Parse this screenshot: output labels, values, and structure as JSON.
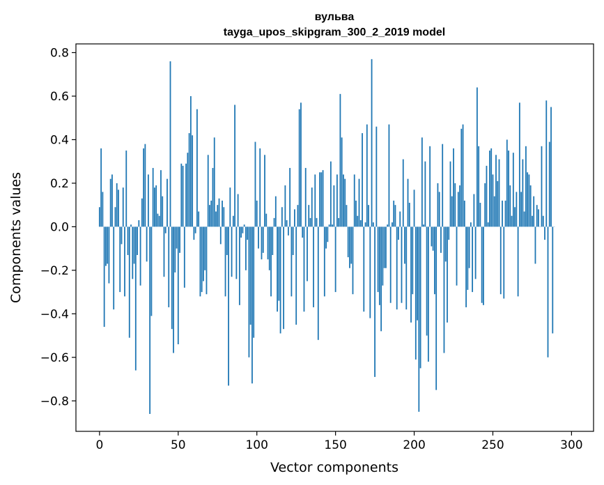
{
  "chart_data": {
    "type": "bar",
    "title": "вульва",
    "subtitle": "tayga_upos_skipgram_300_2_2019 model",
    "xlabel": "Vector components",
    "ylabel": "Components values",
    "xlim": [
      -15,
      314
    ],
    "ylim": [
      -0.94,
      0.84
    ],
    "xticks": [
      0,
      50,
      100,
      150,
      200,
      250,
      300
    ],
    "yticks": [
      -0.8,
      -0.6,
      -0.4,
      -0.2,
      0.0,
      0.2,
      0.4,
      0.6,
      0.8
    ],
    "ytick_labels": [
      "−0.8",
      "−0.6",
      "−0.4",
      "−0.2",
      "0.0",
      "0.2",
      "0.4",
      "0.6",
      "0.8"
    ],
    "xtick_labels": [
      "0",
      "50",
      "100",
      "150",
      "200",
      "250",
      "300"
    ],
    "bar_color": "#1f77b4",
    "grid": false,
    "values": [
      0.09,
      0.36,
      0.16,
      -0.46,
      -0.18,
      -0.17,
      -0.26,
      0.22,
      0.24,
      -0.38,
      0.09,
      0.2,
      0.17,
      -0.3,
      -0.08,
      0.18,
      -0.32,
      0.35,
      -0.13,
      -0.51,
      0.01,
      -0.24,
      -0.17,
      -0.66,
      -0.13,
      0.03,
      -0.27,
      0.13,
      0.36,
      0.38,
      -0.16,
      0.24,
      -0.86,
      -0.41,
      0.27,
      0.18,
      0.19,
      0.06,
      0.05,
      0.26,
      0.14,
      -0.23,
      -0.03,
      0.22,
      -0.37,
      0.76,
      -0.47,
      -0.58,
      -0.21,
      -0.1,
      -0.54,
      -0.12,
      0.29,
      0.28,
      -0.28,
      0.29,
      0.34,
      0.43,
      0.6,
      0.42,
      -0.06,
      -0.03,
      0.54,
      0.07,
      -0.32,
      -0.3,
      -0.25,
      -0.2,
      -0.31,
      0.33,
      0.1,
      0.12,
      0.27,
      0.41,
      0.07,
      0.1,
      0.13,
      -0.08,
      0.12,
      0.09,
      -0.32,
      -0.13,
      -0.73,
      0.18,
      -0.23,
      0.05,
      0.56,
      -0.24,
      0.15,
      -0.36,
      -0.05,
      -0.03,
      0.01,
      -0.2,
      -0.06,
      -0.6,
      -0.45,
      -0.72,
      -0.51,
      0.39,
      0.12,
      -0.1,
      0.36,
      -0.15,
      -0.12,
      0.33,
      0.06,
      -0.15,
      -0.2,
      -0.32,
      -0.13,
      0.04,
      0.14,
      -0.39,
      -0.34,
      -0.49,
      0.09,
      -0.47,
      0.19,
      0.03,
      -0.04,
      0.27,
      -0.32,
      -0.13,
      0.08,
      -0.45,
      0.1,
      0.54,
      0.57,
      -0.05,
      -0.39,
      0.27,
      -0.25,
      0.1,
      0.04,
      0.18,
      -0.37,
      0.24,
      0.04,
      -0.52,
      0.25,
      0.25,
      0.26,
      -0.32,
      -0.1,
      -0.07,
      0.01,
      0.3,
      0.01,
      0.19,
      -0.3,
      0.24,
      0.04,
      0.61,
      0.41,
      0.24,
      0.22,
      0.1,
      -0.14,
      -0.19,
      -0.17,
      -0.31,
      0.24,
      0.12,
      0.05,
      0.22,
      0.03,
      0.43,
      -0.39,
      0.02,
      0.47,
      0.1,
      -0.42,
      0.77,
      0.02,
      -0.69,
      0.46,
      -0.3,
      -0.36,
      -0.48,
      -0.27,
      -0.19,
      -0.19,
      0.01,
      0.47,
      -0.35,
      0.02,
      0.12,
      0.1,
      -0.38,
      -0.06,
      0.07,
      -0.35,
      0.31,
      -0.17,
      -0.38,
      0.22,
      0.11,
      -0.44,
      -0.31,
      0.17,
      -0.61,
      -0.43,
      -0.85,
      -0.65,
      0.41,
      0.01,
      0.3,
      -0.5,
      -0.62,
      0.37,
      -0.09,
      -0.11,
      -0.31,
      -0.75,
      0.2,
      0.16,
      -0.12,
      0.38,
      -0.58,
      -0.16,
      -0.44,
      -0.06,
      0.3,
      0.14,
      0.36,
      0.2,
      -0.27,
      0.16,
      0.19,
      0.45,
      0.47,
      0.12,
      -0.37,
      -0.29,
      -0.19,
      0.02,
      -0.3,
      0.15,
      -0.24,
      0.64,
      0.37,
      0.11,
      -0.35,
      -0.36,
      0.2,
      0.28,
      0.02,
      0.35,
      0.36,
      0.24,
      0.14,
      0.33,
      0.21,
      0.31,
      -0.31,
      0.12,
      -0.33,
      0.12,
      0.4,
      0.35,
      0.19,
      0.05,
      0.34,
      0.09,
      0.16,
      -0.32,
      0.57,
      0.16,
      0.31,
      0.07,
      0.37,
      0.25,
      0.24,
      0.19,
      0.05,
      0.14,
      -0.17,
      0.1,
      0.08,
      0.0,
      0.37,
      0.05,
      -0.06,
      0.58,
      -0.6,
      0.39,
      0.55,
      -0.49,
      0.0
    ]
  }
}
